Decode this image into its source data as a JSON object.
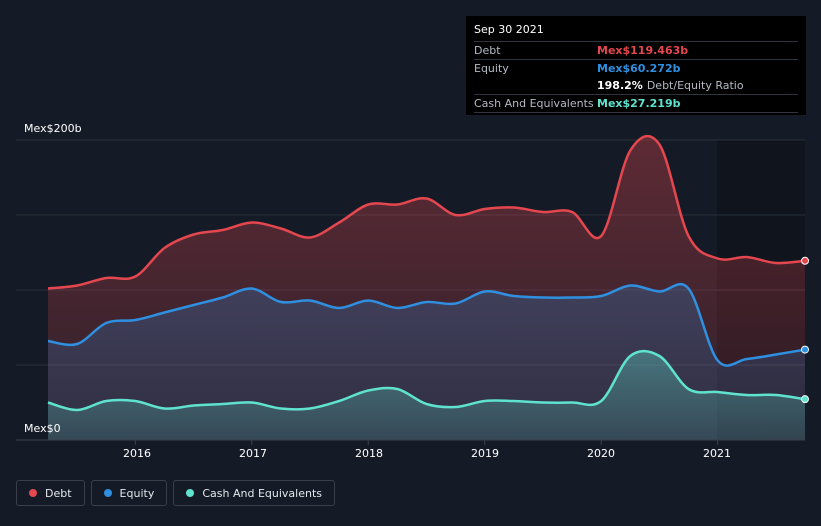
{
  "tooltip": {
    "date": "Sep 30 2021",
    "debt_label": "Debt",
    "debt_value": "Mex$119.463b",
    "equity_label": "Equity",
    "equity_value": "Mex$60.272b",
    "ratio_value": "198.2%",
    "ratio_label": "Debt/Equity Ratio",
    "cash_label": "Cash And Equivalents",
    "cash_value": "Mex$27.219b"
  },
  "colors": {
    "debt": "#e5474f",
    "equity": "#2f8fe0",
    "cash": "#5fe3cf",
    "background": "#151b26"
  },
  "chart_data": {
    "type": "area",
    "title": "",
    "y_top_label": "Mex$200b",
    "y_bottom_label": "Mex$0",
    "ylim": [
      0,
      200
    ],
    "xlim": [
      2015.25,
      2021.75
    ],
    "x_ticks": [
      {
        "label": "2016",
        "x": 2016
      },
      {
        "label": "2017",
        "x": 2017
      },
      {
        "label": "2018",
        "x": 2018
      },
      {
        "label": "2019",
        "x": 2019
      },
      {
        "label": "2020",
        "x": 2020
      },
      {
        "label": "2021",
        "x": 2021
      }
    ],
    "x": [
      2015.25,
      2015.5,
      2015.75,
      2016.0,
      2016.25,
      2016.5,
      2016.75,
      2017.0,
      2017.25,
      2017.5,
      2017.75,
      2018.0,
      2018.25,
      2018.5,
      2018.75,
      2019.0,
      2019.25,
      2019.5,
      2019.75,
      2020.0,
      2020.25,
      2020.5,
      2020.75,
      2021.0,
      2021.25,
      2021.5,
      2021.75
    ],
    "series": [
      {
        "name": "Debt",
        "key": "debt",
        "values": [
          101,
          103,
          108,
          109,
          128,
          137,
          140,
          145,
          141,
          135,
          145,
          157,
          157,
          161,
          150,
          154,
          155,
          152,
          152,
          136,
          193,
          197,
          136,
          121,
          122,
          118,
          119.463
        ]
      },
      {
        "name": "Equity",
        "key": "equity",
        "values": [
          66,
          64,
          78,
          80,
          85,
          90,
          95,
          101,
          92,
          93,
          88,
          93,
          88,
          92,
          91,
          99,
          96,
          95,
          95,
          96,
          103,
          99,
          101,
          53,
          54,
          57,
          60.272
        ]
      },
      {
        "name": "Cash And Equivalents",
        "key": "cash",
        "values": [
          25,
          20,
          26,
          26,
          21,
          23,
          24,
          25,
          21,
          21,
          26,
          33,
          34,
          24,
          22,
          26,
          26,
          25,
          25,
          26,
          56,
          56,
          34,
          32,
          30,
          30,
          27.219
        ]
      }
    ],
    "legend": [
      "Debt",
      "Equity",
      "Cash And Equivalents"
    ],
    "legend_position": "bottom-left",
    "grid": true
  }
}
